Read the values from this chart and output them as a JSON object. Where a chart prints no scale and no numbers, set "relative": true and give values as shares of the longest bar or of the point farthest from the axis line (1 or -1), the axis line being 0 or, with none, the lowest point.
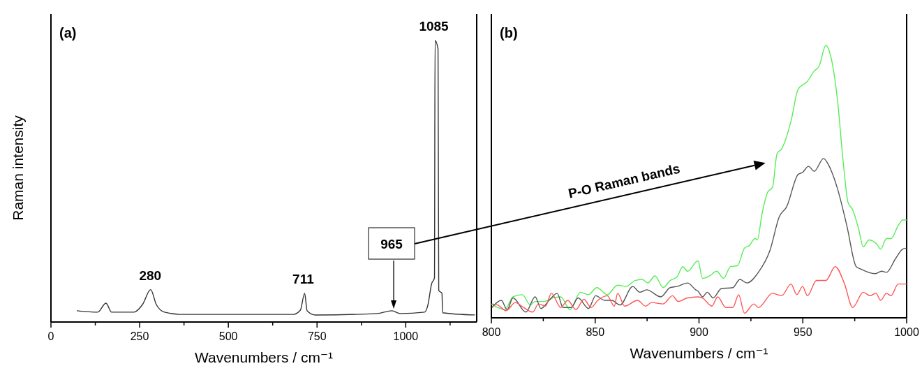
{
  "chart_data": [
    {
      "type": "line",
      "title": "(a)",
      "xlabel": "Wavenumbers / cm⁻¹",
      "ylabel": "Raman intensity",
      "relative": true,
      "xlim": [
        0,
        1200
      ],
      "xticks": [
        0,
        {
          "value": 125,
          "label": null
        },
        250,
        {
          "value": 375,
          "label": null
        },
        500,
        {
          "value": 625,
          "label": null
        },
        750,
        {
          "value": 875,
          "label": null
        },
        1000,
        {
          "value": 1125,
          "label": null
        }
      ],
      "annotations": [
        {
          "text": "280",
          "x": 280,
          "y": 0.115
        },
        {
          "text": "711",
          "x": 711,
          "y": 0.102
        },
        {
          "text": "1085",
          "x": 1085,
          "y": 1
        },
        "965"
      ],
      "series": [
        {
          "color": "#333333",
          "x": [
            73,
            132,
            155,
            171,
            234,
            258,
            281,
            297,
            320,
            367,
            683,
            703,
            715,
            722,
            746,
            919,
            961,
            984,
            1053,
            1062,
            1073,
            1081,
            1082.6,
            1091,
            1093,
            1102,
            1104,
            1195
          ],
          "values": [
            0.04,
            0.035,
            0.067,
            0.035,
            0.035,
            0.062,
            0.115,
            0.062,
            0.035,
            0.027,
            0.027,
            0.042,
            0.102,
            0.04,
            0.025,
            0.03,
            0.04,
            0.03,
            0.035,
            0.058,
            0.136,
            0.157,
            1,
            0.97,
            0.112,
            0.102,
            0.033,
            0.025
          ]
        }
      ]
    },
    {
      "type": "line",
      "title": "(b)",
      "xlabel": "Wavenumbers / cm⁻¹",
      "relative": true,
      "xlim": [
        800,
        1000
      ],
      "xticks": [
        800,
        {
          "value": 825,
          "label": null
        },
        850,
        {
          "value": 875,
          "label": null
        },
        900,
        {
          "value": 925,
          "label": null
        },
        950,
        {
          "value": 975,
          "label": null
        },
        1000
      ],
      "annotations": [
        "P-O Raman bands"
      ],
      "series": [
        {
          "color": "#55ee55",
          "x": [
            800,
            803.1,
            806.5,
            810.4,
            814.9,
            818.8,
            821.1,
            825.5,
            829.5,
            833.4,
            837.9,
            842.9,
            846.8,
            850.8,
            855.8,
            860.8,
            864.8,
            869.2,
            872.6,
            875.4,
            878.8,
            882.7,
            886.1,
            889.4,
            892.2,
            894.5,
            899.5,
            901.7,
            905.1,
            908.5,
            911.8,
            915.2,
            918.5,
            921.9,
            924.2,
            927,
            928.1,
            930.3,
            933.1,
            935.4,
            937.6,
            939.8,
            944.3,
            947.7,
            952.2,
            955.5,
            957.8,
            961.1,
            963.4,
            966.7,
            969.5,
            971.8,
            974,
            976.8,
            979.1,
            981.9,
            985.8,
            987.5,
            990.3,
            992.5,
            995.9,
            998.1,
            1000
          ],
          "values": [
            0.051,
            0.038,
            0.03,
            0.077,
            0.085,
            0.047,
            0.06,
            0.06,
            0.073,
            0.077,
            0.03,
            0.094,
            0.085,
            0.111,
            0.085,
            0.12,
            0.115,
            0.137,
            0.141,
            0.128,
            0.154,
            0.111,
            0.137,
            0.15,
            0.188,
            0.171,
            0.209,
            0.145,
            0.154,
            0.171,
            0.145,
            0.188,
            0.191,
            0.256,
            0.265,
            0.291,
            0.286,
            0.38,
            0.462,
            0.479,
            0.603,
            0.62,
            0.722,
            0.838,
            0.868,
            0.906,
            0.923,
            1,
            0.962,
            0.799,
            0.568,
            0.423,
            0.397,
            0.329,
            0.261,
            0.286,
            0.269,
            0.252,
            0.291,
            0.291,
            0.338,
            0.359,
            0.359
          ]
        },
        {
          "color": "#555555",
          "x": [
            800.3,
            804.8,
            807.6,
            810.4,
            816.6,
            821.1,
            823.9,
            827.8,
            831.7,
            834.5,
            838.4,
            841.8,
            846.8,
            850.2,
            854.7,
            858,
            862,
            868.1,
            871.5,
            874.8,
            881.6,
            886.1,
            889.4,
            894.5,
            898.4,
            899.5,
            901.7,
            904,
            906.8,
            910.7,
            916.3,
            919.7,
            923,
            928.6,
            934.2,
            938.7,
            942.1,
            947.7,
            949.9,
            952.7,
            955.5,
            960,
            962.2,
            966.7,
            971.2,
            975.7,
            977.9,
            984.7,
            988,
            990.3,
            994.7,
            998.1,
            1000
          ],
          "values": [
            0.038,
            0.064,
            0.03,
            0.073,
            0.021,
            0.077,
            0.034,
            0.064,
            0.09,
            0.038,
            0.038,
            0.073,
            0.034,
            0.081,
            0.064,
            0.064,
            0.047,
            0.115,
            0.094,
            0.103,
            0.077,
            0.111,
            0.115,
            0.128,
            0.103,
            0.098,
            0.077,
            0.094,
            0.073,
            0.107,
            0.111,
            0.141,
            0.128,
            0.167,
            0.248,
            0.372,
            0.406,
            0.526,
            0.534,
            0.556,
            0.538,
            0.585,
            0.564,
            0.474,
            0.338,
            0.188,
            0.179,
            0.162,
            0.171,
            0.167,
            0.218,
            0.252,
            0.256
          ]
        },
        {
          "color": "#ff5555",
          "x": [
            800.3,
            803.1,
            807.1,
            811.5,
            815.5,
            819.9,
            822.7,
            826.1,
            828.9,
            833.4,
            836.8,
            840.7,
            844.6,
            848,
            851.3,
            855.8,
            859.2,
            860.8,
            864.2,
            870.4,
            874.3,
            877.1,
            882.7,
            887.2,
            890,
            894.5,
            899.5,
            901.7,
            906.2,
            909,
            912.9,
            916.3,
            919.1,
            921.9,
            926.4,
            928.6,
            935.4,
            939.8,
            944.3,
            947.1,
            949.9,
            952.2,
            956.6,
            961.1,
            965.6,
            970.1,
            974,
            979.1,
            982.4,
            985.2,
            987.5,
            990.3,
            992.5,
            995.9,
            1000
          ],
          "values": [
            0.051,
            0.047,
            0.026,
            0.056,
            0.038,
            0.021,
            0.051,
            0.043,
            0.09,
            0.038,
            0.064,
            0.03,
            0.068,
            0.038,
            0.064,
            0.081,
            0.043,
            0.09,
            0.043,
            0.064,
            0.043,
            0.056,
            0.051,
            0.081,
            0.06,
            0.073,
            0.077,
            0.073,
            0.043,
            0.077,
            0.038,
            0.038,
            0.085,
            0.017,
            0.051,
            0.038,
            0.09,
            0.081,
            0.124,
            0.085,
            0.115,
            0.081,
            0.137,
            0.137,
            0.188,
            0.124,
            0.038,
            0.094,
            0.081,
            0.09,
            0.064,
            0.09,
            0.081,
            0.124,
            0.124
          ]
        }
      ]
    }
  ]
}
